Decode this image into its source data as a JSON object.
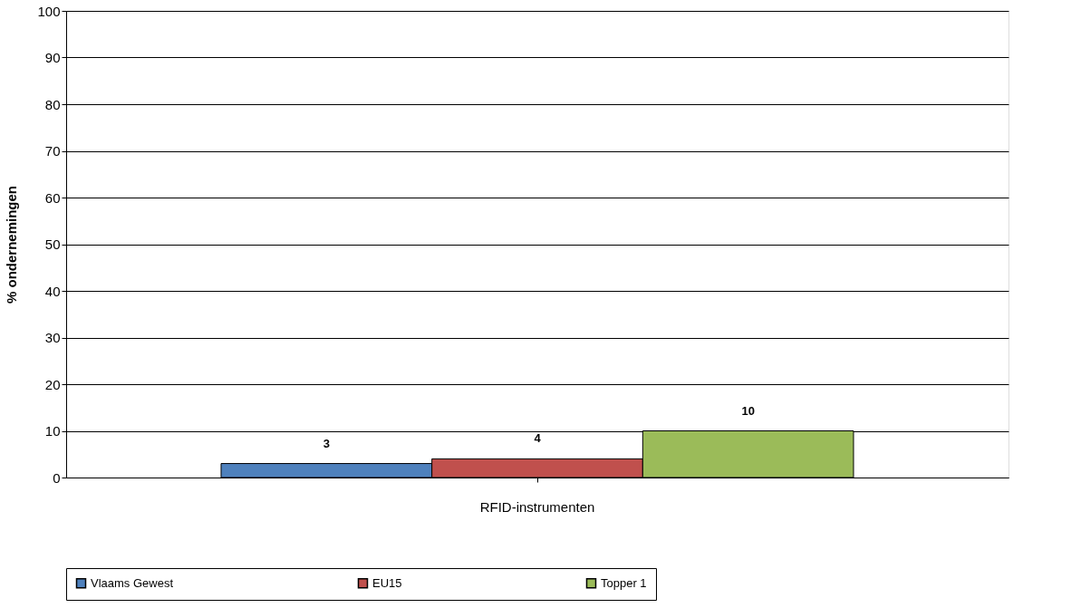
{
  "chart_data": {
    "type": "bar",
    "ylabel": "% ondernemingen",
    "categories": [
      "RFID-instrumenten"
    ],
    "series": [
      {
        "name": "Vlaams Gewest",
        "color": "#4f81bd",
        "values": [
          3
        ]
      },
      {
        "name": "EU15",
        "color": "#c0504d",
        "values": [
          4
        ]
      },
      {
        "name": "Topper 1",
        "color": "#9bbb59",
        "values": [
          10
        ]
      }
    ],
    "ylim": [
      0,
      100
    ],
    "yticks": [
      0,
      10,
      20,
      30,
      40,
      50,
      60,
      70,
      80,
      90,
      100
    ],
    "grid": "y",
    "legend": "bottom",
    "data_labels": true
  }
}
